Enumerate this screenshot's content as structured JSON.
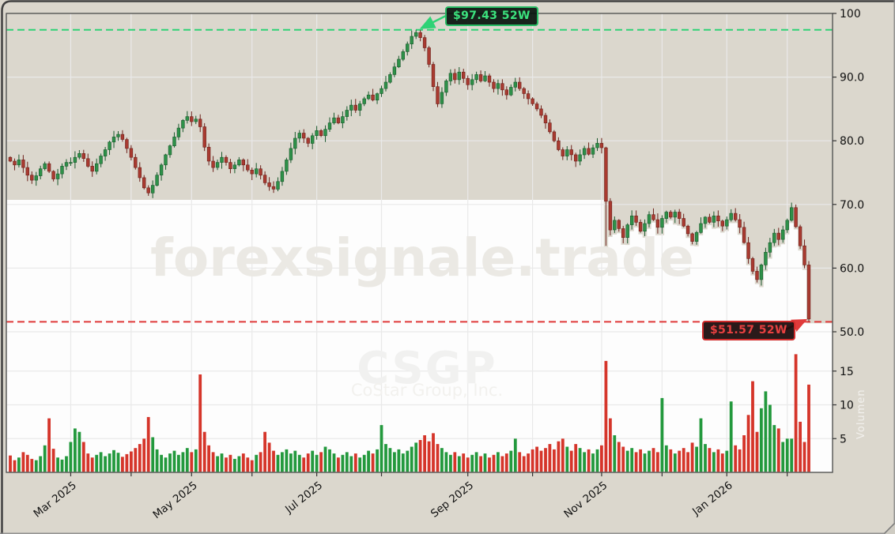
{
  "watermarks": {
    "site": "forexsignale.trade",
    "ticker": "CSGP",
    "company": "CoStar Group, Inc.",
    "volume_axis_label": "Volumen"
  },
  "annotations": {
    "high_label": "$97.43 52W",
    "low_label": "$51.57 52W"
  },
  "colors": {
    "figure_bg": "#dbd7cd",
    "fill_white": "#fdfdfd",
    "grid": "#e9e9e9",
    "frame": "#4a4a4a",
    "tick_text": "#111111",
    "candle_up": "#2e9149",
    "candle_up_edge": "#19592c",
    "candle_down": "#a93a30",
    "candle_down_edge": "#6d211b",
    "volume_up": "#23993d",
    "volume_down": "#d5352a",
    "line_high": "#2fd276",
    "line_low": "#e03a3a",
    "watermark_site": "#ebe9e4",
    "watermark_ticker": "#f1f1f0",
    "watermark_company": "#f2f1ee",
    "watermark_volumen": "rgba(255,255,255,0.66)"
  },
  "chart_data": {
    "type": "candlestick",
    "ticker": "CSGP",
    "high_52w": 97.43,
    "low_52w": 51.57,
    "first_open": 77.4,
    "price_ticks": [
      {
        "v": 100,
        "label": "100"
      },
      {
        "v": 90,
        "label": "90.0"
      },
      {
        "v": 80,
        "label": "80.0"
      },
      {
        "v": 70,
        "label": "70.0"
      },
      {
        "v": 60,
        "label": "60.0"
      },
      {
        "v": 50,
        "label": "50.0"
      }
    ],
    "volume_ticks": [
      {
        "v": 15,
        "label": "15"
      },
      {
        "v": 10,
        "label": "10"
      },
      {
        "v": 5,
        "label": "5"
      }
    ],
    "month_ticks": [
      {
        "i": 14,
        "label": "Mar 2025"
      },
      {
        "i": 28,
        "label": ""
      },
      {
        "i": 42,
        "label": "May 2025"
      },
      {
        "i": 56,
        "label": ""
      },
      {
        "i": 71,
        "label": "Jul 2025"
      },
      {
        "i": 86,
        "label": ""
      },
      {
        "i": 106,
        "label": "Sep 2025"
      },
      {
        "i": 121,
        "label": ""
      },
      {
        "i": 137,
        "label": "Nov 2025"
      },
      {
        "i": 151,
        "label": ""
      },
      {
        "i": 166,
        "label": "Jan 2026"
      },
      {
        "i": 180,
        "label": ""
      }
    ],
    "wick_overrides": {
      "94": {
        "high": 97.43
      },
      "138": {
        "low": 63.5
      },
      "185": {
        "low": 51.57
      }
    },
    "closes": [
      76.8,
      76.2,
      77.0,
      75.8,
      74.6,
      73.8,
      74.5,
      75.6,
      76.4,
      75.2,
      74.0,
      74.8,
      76.0,
      76.6,
      76.6,
      77.4,
      78.0,
      77.2,
      76.0,
      75.2,
      76.4,
      77.6,
      78.6,
      79.8,
      80.6,
      81.0,
      80.2,
      78.8,
      77.4,
      75.8,
      74.2,
      72.6,
      71.8,
      73.0,
      74.6,
      76.2,
      77.8,
      79.2,
      80.6,
      82.0,
      83.2,
      83.8,
      83.0,
      83.4,
      82.2,
      79.0,
      76.8,
      75.8,
      76.6,
      77.4,
      76.6,
      75.6,
      76.2,
      77.0,
      76.2,
      75.4,
      74.8,
      75.6,
      74.6,
      73.4,
      72.8,
      72.4,
      73.6,
      75.2,
      77.0,
      78.8,
      80.4,
      81.2,
      80.4,
      79.6,
      80.8,
      81.6,
      80.8,
      81.8,
      82.8,
      83.6,
      82.8,
      83.8,
      84.8,
      85.6,
      84.8,
      85.8,
      86.6,
      87.2,
      86.4,
      87.4,
      88.2,
      89.2,
      90.4,
      91.6,
      92.8,
      94.0,
      95.2,
      96.4,
      97.0,
      96.2,
      94.6,
      92.0,
      88.5,
      85.8,
      87.6,
      89.4,
      90.6,
      89.6,
      90.8,
      89.8,
      88.8,
      89.6,
      90.4,
      89.4,
      90.2,
      89.2,
      88.2,
      89.0,
      88.0,
      87.2,
      88.4,
      89.2,
      88.2,
      87.4,
      86.6,
      85.8,
      85.0,
      84.0,
      82.8,
      81.4,
      80.0,
      78.6,
      77.6,
      78.6,
      77.8,
      76.8,
      77.8,
      78.8,
      77.9,
      78.9,
      79.6,
      78.9,
      70.5,
      66.0,
      67.5,
      66.2,
      64.8,
      66.8,
      68.2,
      67.2,
      65.8,
      67.0,
      68.4,
      67.6,
      66.4,
      67.8,
      68.8,
      68.0,
      68.8,
      67.8,
      66.6,
      65.4,
      64.2,
      65.6,
      67.0,
      68.0,
      67.2,
      68.2,
      67.4,
      66.6,
      67.6,
      68.6,
      67.6,
      66.4,
      64.0,
      61.5,
      59.5,
      58.2,
      60.5,
      62.5,
      64.0,
      65.5,
      64.5,
      66.0,
      67.5,
      69.5,
      66.5,
      63.5,
      60.5,
      52.0
    ],
    "volumes": [
      2.5,
      1.8,
      2.2,
      3.0,
      2.6,
      2.0,
      1.8,
      2.4,
      4.0,
      8.0,
      3.5,
      2.2,
      1.9,
      2.4,
      4.5,
      6.5,
      6.0,
      4.5,
      2.8,
      2.2,
      2.6,
      3.0,
      2.4,
      2.8,
      3.3,
      2.9,
      2.3,
      2.7,
      3.1,
      3.6,
      4.2,
      5.0,
      8.2,
      5.2,
      3.4,
      2.6,
      2.2,
      2.8,
      3.2,
      2.6,
      3.0,
      3.6,
      3.0,
      3.4,
      14.5,
      6.0,
      4.0,
      3.0,
      2.4,
      2.8,
      2.2,
      2.6,
      2.0,
      2.4,
      2.8,
      2.2,
      1.8,
      2.6,
      3.0,
      6.0,
      4.4,
      3.2,
      2.6,
      3.0,
      3.4,
      2.8,
      3.2,
      2.6,
      2.2,
      2.8,
      3.2,
      2.6,
      3.0,
      3.8,
      3.4,
      2.8,
      2.2,
      2.6,
      3.0,
      2.4,
      2.8,
      2.2,
      2.6,
      3.2,
      2.8,
      3.4,
      7.0,
      4.2,
      3.6,
      3.0,
      3.4,
      2.8,
      3.2,
      3.8,
      4.4,
      4.8,
      5.5,
      4.6,
      5.8,
      4.2,
      3.6,
      3.0,
      2.6,
      3.0,
      2.4,
      2.8,
      2.2,
      2.6,
      3.0,
      2.4,
      2.8,
      2.2,
      2.6,
      3.0,
      2.4,
      2.8,
      3.2,
      5.0,
      3.0,
      2.4,
      2.8,
      3.4,
      3.8,
      3.2,
      3.6,
      4.2,
      3.4,
      4.6,
      5.0,
      3.8,
      3.2,
      4.2,
      3.6,
      3.0,
      3.4,
      2.8,
      3.4,
      4.0,
      16.5,
      8.0,
      5.5,
      4.5,
      3.8,
      3.2,
      3.6,
      3.0,
      3.4,
      2.8,
      3.2,
      3.6,
      3.0,
      11.0,
      4.0,
      3.4,
      2.8,
      3.2,
      3.6,
      3.0,
      4.4,
      3.8,
      8.0,
      4.2,
      3.6,
      3.0,
      3.4,
      2.8,
      3.2,
      10.5,
      4.0,
      3.4,
      5.5,
      8.5,
      13.5,
      6.0,
      9.5,
      12.0,
      10.0,
      7.0,
      6.5,
      4.5,
      5.0,
      5.0,
      17.5,
      7.5,
      4.5,
      13.0
    ]
  }
}
